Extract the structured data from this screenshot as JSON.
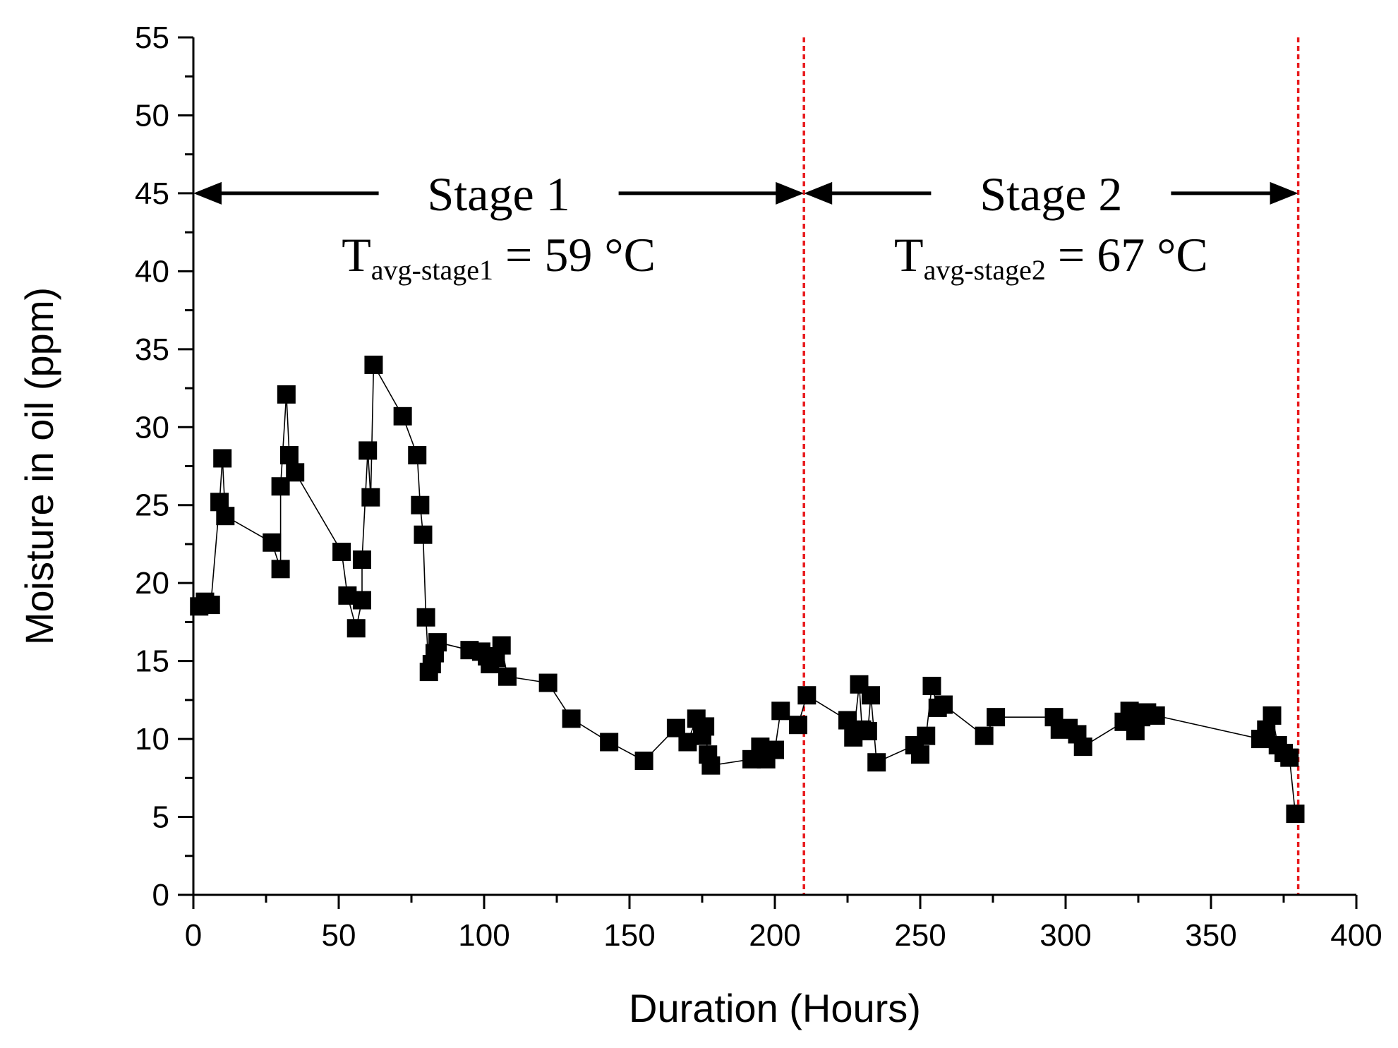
{
  "chart_data": {
    "type": "line",
    "title": "",
    "xlabel": "Duration (Hours)",
    "ylabel": "Moisture in oil (ppm)",
    "xlim": [
      0,
      400
    ],
    "ylim": [
      0,
      55
    ],
    "xticks": [
      0,
      50,
      100,
      150,
      200,
      250,
      300,
      350,
      400
    ],
    "yticks": [
      0,
      5,
      10,
      15,
      20,
      25,
      30,
      35,
      40,
      45,
      50,
      55
    ],
    "grid": false,
    "series": [
      {
        "name": "Moisture in oil",
        "marker": "square",
        "color": "#000000",
        "x": [
          2,
          4,
          6,
          9,
          10,
          11,
          27,
          30,
          30,
          32,
          33,
          35,
          51,
          53,
          56,
          58,
          58,
          60,
          61,
          62,
          72,
          77,
          78,
          79,
          80,
          81,
          82,
          83,
          84,
          95,
          99,
          101,
          102,
          104,
          106,
          108,
          122,
          130,
          143,
          155,
          166,
          170,
          173,
          175,
          176,
          177,
          178,
          192,
          195,
          197,
          200,
          202,
          208,
          211,
          225,
          227,
          229,
          230,
          232,
          233,
          235,
          248,
          250,
          252,
          254,
          256,
          258,
          272,
          276,
          296,
          298,
          301,
          304,
          306,
          320,
          322,
          324,
          326,
          328,
          331,
          367,
          369,
          371,
          373,
          375,
          377,
          379
        ],
        "y": [
          18.5,
          18.8,
          18.6,
          25.2,
          28.0,
          24.3,
          22.6,
          20.9,
          26.2,
          32.1,
          28.2,
          27.1,
          22.0,
          19.2,
          17.1,
          18.9,
          21.5,
          28.5,
          25.5,
          34.0,
          30.7,
          28.2,
          25.0,
          23.1,
          17.8,
          14.3,
          14.8,
          15.5,
          16.2,
          15.7,
          15.6,
          15.3,
          14.8,
          15.2,
          16.0,
          14.0,
          13.6,
          11.3,
          9.8,
          8.6,
          10.7,
          9.8,
          11.3,
          10.2,
          10.8,
          9.0,
          8.3,
          8.7,
          9.5,
          8.7,
          9.3,
          11.8,
          10.9,
          12.8,
          11.2,
          10.1,
          13.5,
          10.6,
          10.5,
          12.8,
          8.5,
          9.6,
          9.0,
          10.2,
          13.4,
          12.0,
          12.2,
          10.2,
          11.4,
          11.4,
          10.6,
          10.7,
          10.3,
          9.5,
          11.1,
          11.8,
          10.5,
          11.4,
          11.7,
          11.5,
          10.0,
          10.6,
          11.5,
          9.6,
          9.1,
          8.8,
          5.2
        ]
      }
    ],
    "vlines": [
      {
        "x": 210,
        "color": "#e8191c",
        "style": "dotted"
      },
      {
        "x": 380,
        "color": "#e8191c",
        "style": "dotted"
      }
    ],
    "annotations": [
      {
        "id": "stage1",
        "label": "Stage 1",
        "x_from": 0,
        "x_to": 210,
        "y": 45,
        "temp_prefix": "T",
        "temp_subscript": "avg-stage1",
        "temp_value": " = 59 °C"
      },
      {
        "id": "stage2",
        "label": "Stage 2",
        "x_from": 210,
        "x_to": 380,
        "y": 45,
        "temp_prefix": "T",
        "temp_subscript": "avg-stage2",
        "temp_value": " = 67 °C"
      }
    ]
  }
}
